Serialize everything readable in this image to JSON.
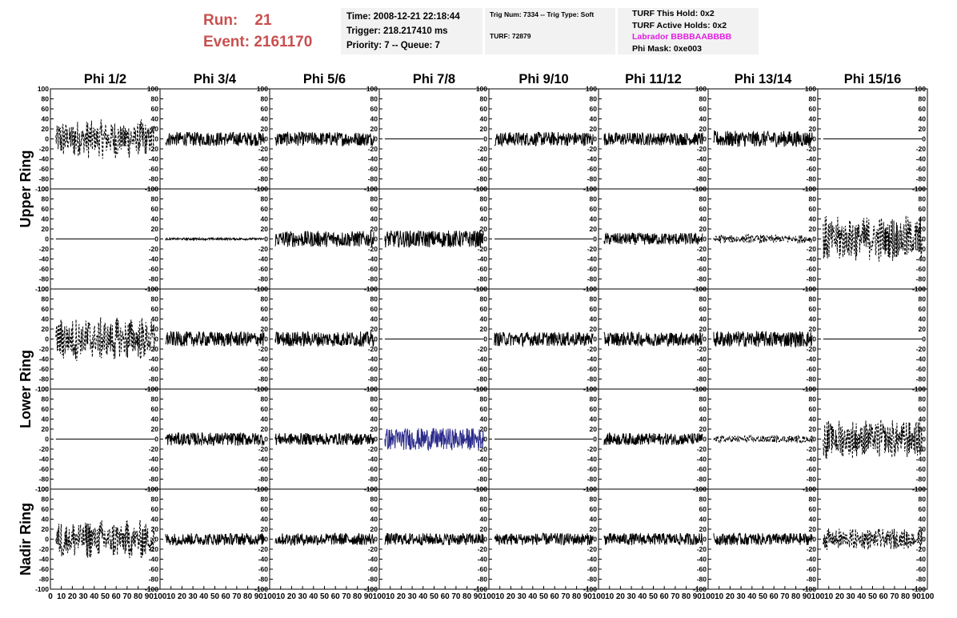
{
  "header": {
    "run_label": "Run:",
    "run_value": "21",
    "event_label": "Event:",
    "event_value": "2161170"
  },
  "info": {
    "time": "Time: 2008-12-21 22:18:44",
    "trigger": "Trigger: 218.217410 ms",
    "priority": "Priority: 7 -- Queue: 7",
    "trig_num": "Trig Num: 7334 -- Trig Type: Soft",
    "turf": "TURF: 72879",
    "turf_this_hold": "TURF This Hold: 0x2",
    "turf_active_holds": "TURF Active Holds: 0x2",
    "labrador": "Labrador BBBBAABBBB",
    "phi_mask": "Phi Mask: 0xe003"
  },
  "colors": {
    "header_red": "#c8504f",
    "labrador_magenta": "#e020e0",
    "trace_black": "#000000",
    "trace_blue": "#2b2b8c"
  },
  "chart_data": {
    "type": "line",
    "columns": [
      "Phi 1/2",
      "Phi 3/4",
      "Phi 5/6",
      "Phi 7/8",
      "Phi 9/10",
      "Phi 11/12",
      "Phi 13/14",
      "Phi 15/16"
    ],
    "row_groups": [
      {
        "label": "Upper Ring",
        "rows": [
          0,
          1
        ]
      },
      {
        "label": "Lower Ring",
        "rows": [
          2,
          3
        ]
      },
      {
        "label": "Nadir Ring",
        "rows": [
          4
        ]
      }
    ],
    "ylim": [
      -100,
      100
    ],
    "xlim": [
      0,
      100
    ],
    "yticks": [
      100,
      80,
      60,
      40,
      20,
      0,
      -20,
      -40,
      -60,
      -80,
      -100
    ],
    "xticks": [
      0,
      10,
      20,
      30,
      40,
      50,
      60,
      70,
      80,
      90,
      100
    ],
    "traces": [
      [
        {
          "amp": 40,
          "style": "dashed",
          "color": "#000000"
        },
        {
          "amp": 14,
          "style": "solid",
          "color": "#000000"
        },
        {
          "amp": 14,
          "style": "solid",
          "color": "#000000"
        },
        {
          "amp": 0,
          "style": "solid",
          "color": "#000000"
        },
        {
          "amp": 14,
          "style": "solid",
          "color": "#000000"
        },
        {
          "amp": 13,
          "style": "solid",
          "color": "#000000"
        },
        {
          "amp": 16,
          "style": "solid",
          "color": "#000000"
        },
        {
          "amp": 0,
          "style": "solid",
          "color": "#000000"
        }
      ],
      [
        {
          "amp": 0,
          "style": "solid",
          "color": "#000000"
        },
        {
          "amp": 2,
          "style": "solid",
          "color": "#000000"
        },
        {
          "amp": 16,
          "style": "solid",
          "color": "#000000"
        },
        {
          "amp": 17,
          "style": "solid",
          "color": "#000000"
        },
        {
          "amp": 0,
          "style": "solid",
          "color": "#000000"
        },
        {
          "amp": 12,
          "style": "solid",
          "color": "#000000"
        },
        {
          "amp": 9,
          "style": "dashed",
          "color": "#000000"
        },
        {
          "amp": 48,
          "style": "dashed",
          "color": "#000000"
        }
      ],
      [
        {
          "amp": 45,
          "style": "dashed",
          "color": "#000000"
        },
        {
          "amp": 15,
          "style": "solid",
          "color": "#000000"
        },
        {
          "amp": 15,
          "style": "solid",
          "color": "#000000"
        },
        {
          "amp": 0,
          "style": "solid",
          "color": "#000000"
        },
        {
          "amp": 14,
          "style": "solid",
          "color": "#000000"
        },
        {
          "amp": 14,
          "style": "solid",
          "color": "#000000"
        },
        {
          "amp": 16,
          "style": "solid",
          "color": "#000000"
        },
        {
          "amp": 0,
          "style": "solid",
          "color": "#000000"
        }
      ],
      [
        {
          "amp": 0,
          "style": "solid",
          "color": "#000000"
        },
        {
          "amp": 13,
          "style": "solid",
          "color": "#000000"
        },
        {
          "amp": 12,
          "style": "solid",
          "color": "#000000"
        },
        {
          "amp": 22,
          "style": "solid",
          "color": "#2b2b8c"
        },
        {
          "amp": 0,
          "style": "solid",
          "color": "#000000"
        },
        {
          "amp": 12,
          "style": "solid",
          "color": "#000000"
        },
        {
          "amp": 8,
          "style": "dashed",
          "color": "#000000"
        },
        {
          "amp": 40,
          "style": "dashed",
          "color": "#000000"
        }
      ],
      [
        {
          "amp": 40,
          "style": "dashed",
          "color": "#000000"
        },
        {
          "amp": 12,
          "style": "solid",
          "color": "#000000"
        },
        {
          "amp": 12,
          "style": "solid",
          "color": "#000000"
        },
        {
          "amp": 12,
          "style": "solid",
          "color": "#000000"
        },
        {
          "amp": 12,
          "style": "solid",
          "color": "#000000"
        },
        {
          "amp": 12,
          "style": "solid",
          "color": "#000000"
        },
        {
          "amp": 12,
          "style": "solid",
          "color": "#000000"
        },
        {
          "amp": 22,
          "style": "dashed",
          "color": "#000000"
        }
      ]
    ]
  }
}
